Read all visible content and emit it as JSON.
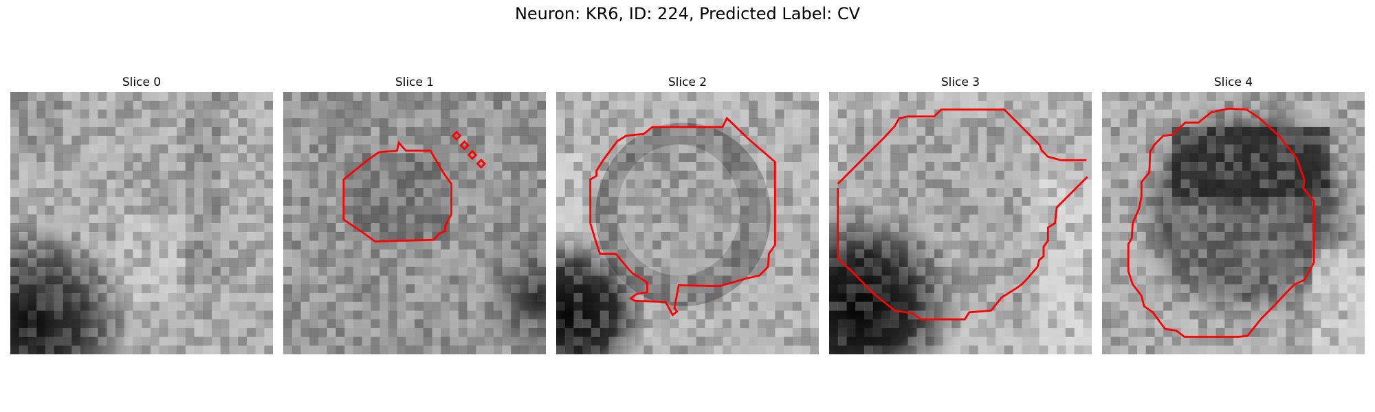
{
  "figure": {
    "title": "Neuron: KR6, ID: 224, Predicted Label: CV"
  },
  "panels": [
    {
      "title": "Slice 0",
      "has_contour": false
    },
    {
      "title": "Slice 1",
      "has_contour": true
    },
    {
      "title": "Slice 2",
      "has_contour": true
    },
    {
      "title": "Slice 3",
      "has_contour": true
    },
    {
      "title": "Slice 4",
      "has_contour": true
    }
  ],
  "colors": {
    "contour": "#ff0000",
    "background": "#ffffff"
  }
}
